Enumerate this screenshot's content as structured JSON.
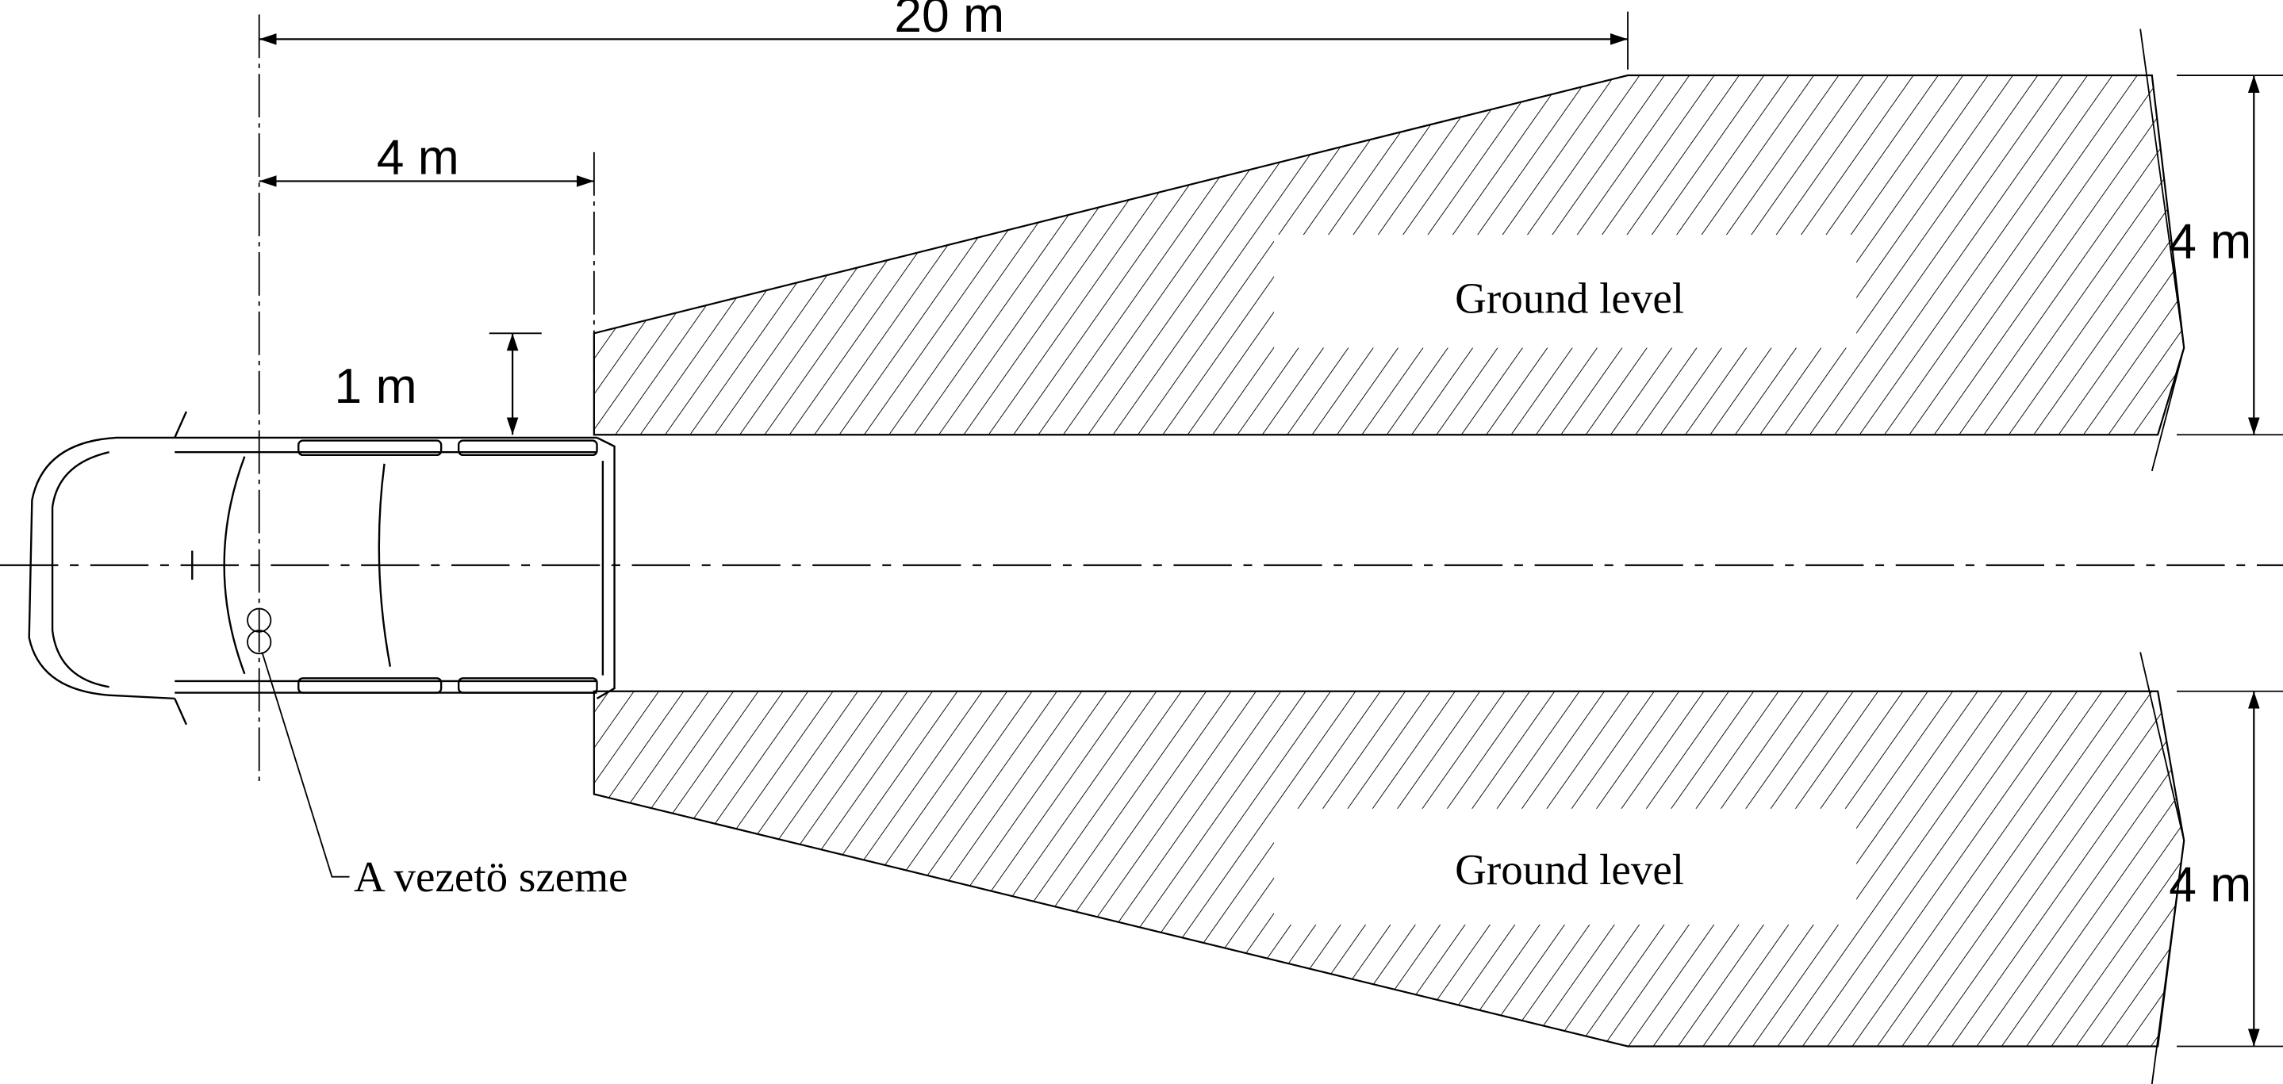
{
  "dimensions": {
    "distance_20m": "20 m",
    "distance_4m": "4 m",
    "offset_1m": "1 m",
    "width_upper": "4 m",
    "width_lower": "4 m"
  },
  "zones": {
    "upper_label": "Ground level",
    "lower_label": "Ground level"
  },
  "annotations": {
    "driver_eye": "A vezetö szeme"
  },
  "colors": {
    "line": "#000000",
    "background": "#ffffff"
  }
}
